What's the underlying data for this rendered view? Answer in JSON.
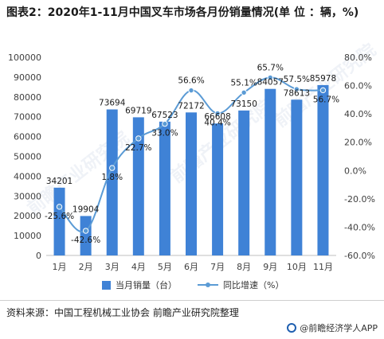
{
  "title": "图表2：2020年1-11月中国叉车市场各月份销量情况(单 位 ：辆，%)",
  "legend": {
    "bar_label": "当月销量（台）",
    "line_label": "同比增速（%）"
  },
  "source": "资料来源：中国工程机械工业协会 前瞻产业研究院整理",
  "brand": "@前瞻经济学人APP",
  "watermark": "前瞻产业研究院",
  "colors": {
    "bar": "#3f82d6",
    "line": "#5b9bd5"
  },
  "chart_data": {
    "type": "bar",
    "categories": [
      "1月",
      "2月",
      "3月",
      "4月",
      "5月",
      "6月",
      "7月",
      "8月",
      "9月",
      "10月",
      "11月"
    ],
    "series": [
      {
        "name": "当月销量（台）",
        "type": "bar",
        "axis": "left",
        "values": [
          34201,
          19904,
          73694,
          69719,
          67523,
          72172,
          66608,
          73150,
          84057,
          78613,
          85978
        ],
        "labels": [
          "34201",
          "19904",
          "73694",
          "69719",
          "67523",
          "72172",
          "66608",
          "73150",
          "84057",
          "78613",
          "85978"
        ]
      },
      {
        "name": "同比增速（%）",
        "type": "line",
        "axis": "right",
        "values": [
          -25.6,
          -42.6,
          1.8,
          22.7,
          33.0,
          56.6,
          40.4,
          55.1,
          65.7,
          57.5,
          56.7
        ],
        "labels": [
          "-25.6%",
          "-42.6%",
          "1.8%",
          "22.7%",
          "33.0%",
          "56.6%",
          "40.4%",
          "55.1%",
          "65.7%",
          "57.5%",
          "56.7%"
        ]
      }
    ],
    "y_left": {
      "lim": [
        0,
        100000
      ],
      "ticks": [
        "0",
        "10000",
        "20000",
        "30000",
        "40000",
        "50000",
        "60000",
        "70000",
        "80000",
        "90000",
        "100000"
      ]
    },
    "y_right": {
      "lim": [
        -60,
        80
      ],
      "ticks": [
        "-60.0%",
        "-40.0%",
        "-20.0%",
        "0.0%",
        "20.0%",
        "40.0%",
        "60.0%",
        "80.0%"
      ]
    },
    "grid": false,
    "legend_position": "bottom"
  }
}
